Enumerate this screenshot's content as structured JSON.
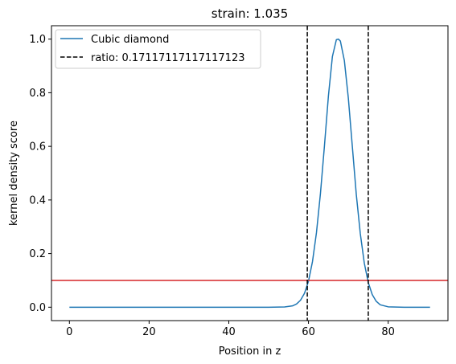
{
  "chart_data": {
    "type": "line",
    "title": "strain: 1.035",
    "xlabel": "Position in z",
    "ylabel": "kernel density score",
    "xlim": [
      -4.5,
      95
    ],
    "ylim": [
      -0.05,
      1.05
    ],
    "xticks": [
      0,
      20,
      40,
      60,
      80
    ],
    "yticks": [
      0.0,
      0.2,
      0.4,
      0.6,
      0.8,
      1.0
    ],
    "xtick_labels": [
      "0",
      "20",
      "40",
      "60",
      "80"
    ],
    "ytick_labels": [
      "0.0",
      "0.2",
      "0.4",
      "0.6",
      "0.8",
      "1.0"
    ],
    "grid": false,
    "legend_position": "top-left",
    "series": [
      {
        "name": "Cubic diamond",
        "style": "solid",
        "color": "#1f77b4",
        "x": [
          0,
          10,
          20,
          30,
          40,
          50,
          54,
          56,
          57,
          58,
          59,
          60,
          61,
          62,
          63,
          64,
          65,
          66,
          67,
          67.5,
          68,
          69,
          70,
          71,
          72,
          73,
          74,
          75,
          76,
          77,
          78,
          80,
          84,
          90.5
        ],
        "y": [
          0,
          0,
          0,
          0,
          0,
          0,
          0.001,
          0.005,
          0.012,
          0.026,
          0.052,
          0.097,
          0.17,
          0.278,
          0.424,
          0.601,
          0.788,
          0.935,
          0.998,
          1.0,
          0.993,
          0.92,
          0.78,
          0.6,
          0.42,
          0.275,
          0.165,
          0.092,
          0.047,
          0.022,
          0.009,
          0.0015,
          0,
          0
        ]
      }
    ],
    "vlines": [
      {
        "label": "ratio: 0.17117117117117123",
        "x": 59.7,
        "style": "dashed",
        "color": "#000000"
      },
      {
        "label": "",
        "x": 75.0,
        "style": "dashed",
        "color": "#000000"
      }
    ],
    "hlines": [
      {
        "y": 0.1,
        "style": "solid",
        "color": "#d62728"
      }
    ]
  }
}
